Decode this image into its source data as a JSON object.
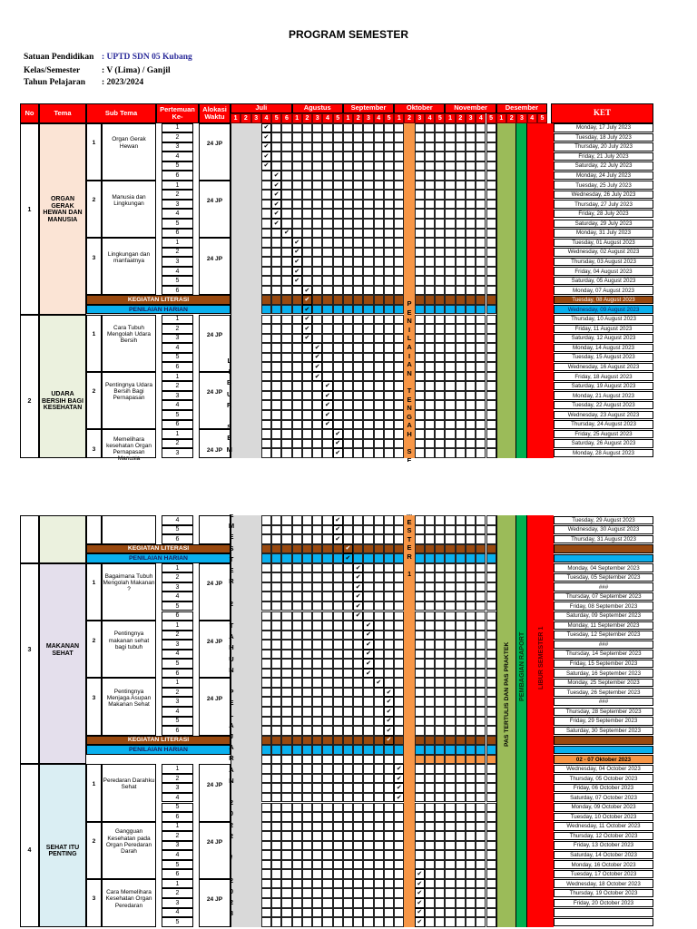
{
  "document": {
    "title": "PROGRAM SEMESTER",
    "info": [
      {
        "label": "Satuan Pendidikan",
        "value": ": UPTD SDN 05 Kubang"
      },
      {
        "label": "Kelas/Semester",
        "value": ": V (Lima) / Ganjil"
      },
      {
        "label": "Tahun Pelajaran",
        "value": ": 2023/2024"
      }
    ]
  },
  "table": {
    "headers": {
      "no": "No",
      "tema": "Tema",
      "sub_tema": "Sub Tema",
      "pertemuan": "Pertemuan Ke-",
      "alokasi": "Alokasi Waktu",
      "ket": "KET"
    },
    "months": [
      {
        "name": "Juli",
        "weeks": [
          "1",
          "2",
          "3",
          "4",
          "5",
          "6"
        ]
      },
      {
        "name": "Agustus",
        "weeks": [
          "1",
          "2",
          "3",
          "4",
          "5"
        ]
      },
      {
        "name": "September",
        "weeks": [
          "1",
          "2",
          "3",
          "4",
          "5"
        ]
      },
      {
        "name": "Oktober",
        "weeks": [
          "1",
          "2",
          "3",
          "4",
          "5"
        ]
      },
      {
        "name": "November",
        "weeks": [
          "1",
          "2",
          "3",
          "4",
          "5"
        ]
      },
      {
        "name": "Desember",
        "weeks": [
          "1",
          "2",
          "3",
          "4",
          "5"
        ]
      }
    ],
    "bands": {
      "literasi": "KEGIATAN LITERASI",
      "penilaian": "PENILAIAN HARIAN"
    },
    "vertical_labels": {
      "libur_semester": "LIBUR SEMESTER 2 TAHUN PELAJARAN 2022 / 2023",
      "pts": "PENILAIAN TENGAH SEMESTER 1",
      "pas": "PAS TERTULIS DAN PAS PRAKTEK",
      "raport": "PEMBAGIAN RAPORT",
      "libur_s1": "LIBUR SEMESTER 1"
    },
    "check_glyph": "✔",
    "temas": [
      {
        "no": "1",
        "name": "ORGAN GERAK HEWAN DAN MANUSIA",
        "color": "#fbe4d5",
        "subtemas": [
          {
            "no": "1",
            "name": "Organ Gerak Hewan",
            "alokasi": "24 JP"
          },
          {
            "no": "2",
            "name": "Manusia dan Lingkungan",
            "alokasi": "24 JP"
          },
          {
            "no": "3",
            "name": "Lingkungan dan manfaatnya",
            "alokasi": "24 JP"
          }
        ]
      },
      {
        "no": "2",
        "name": "UDARA BERSIH BAGI KESEHATAN",
        "color": "#ebf1de",
        "subtemas": [
          {
            "no": "1",
            "name": "Cara Tubuh Mengolah Udara Bersih",
            "alokasi": "24 JP"
          },
          {
            "no": "2",
            "name": "Pentingnya Udara Bersih Bagi Pernapasan",
            "alokasi": "24 JP"
          },
          {
            "no": "3",
            "name": "Memelihara kesehatan Organ Pernapasan Manusia",
            "alokasi": "24 JP"
          }
        ]
      },
      {
        "no": "3",
        "name": "MAKANAN SEHAT",
        "color": "#e4dfec",
        "subtemas": [
          {
            "no": "1",
            "name": "Bagaimana Tubuh Mengolah Makanan ?",
            "alokasi": "24 JP"
          },
          {
            "no": "2",
            "name": "Pentingnya makanan sehat bagi tubuh",
            "alokasi": "24 JP"
          },
          {
            "no": "3",
            "name": "Pentingnya Menjaga Asupan Makanan Sehat",
            "alokasi": "24 JP"
          }
        ]
      },
      {
        "no": "4",
        "name": "SEHAT ITU PENTING",
        "color": "#daeef3",
        "subtemas": [
          {
            "no": "1",
            "name": "Peredaran Darahku Sehat",
            "alokasi": "24 JP"
          },
          {
            "no": "2",
            "name": "Gangguan Kesehatan pada Organ Peredaran Darah",
            "alokasi": "24 JP"
          },
          {
            "no": "3",
            "name": "Cara Memelihara Kesehatan Organ Peredaran",
            "alokasi": "24 JP"
          }
        ]
      }
    ],
    "ket_page1": [
      "Monday, 17 July 2023",
      "Tuesday, 18 July 2023",
      "Thursday, 20 July 2023",
      "Friday, 21 July 2023",
      "Saturday, 22 July 2023",
      "Monday, 24 July 2023",
      "Tuesday, 25 July 2023",
      "Wednesday, 26 July 2023",
      "Thursday, 27 July 2023",
      "Friday, 28 July 2023",
      "Saturday, 29 July 2023",
      "Monday, 31 July 2023",
      "Tuesday, 01 August 2023",
      "Wednesday, 02 August 2023",
      "Thursday, 03 August 2023",
      "Friday, 04 August 2023",
      "Saturday, 05 August 2023",
      "Monday, 07 August 2023",
      "Tuesday, 08 August 2023",
      "Wednesday, 09 August 2023",
      "Thursday, 10 August 2023",
      "Friday, 11 August 2023",
      "Saturday, 12 August 2023",
      "Monday, 14 August 2023",
      "Tuesday, 15 August 2023",
      "Wednesday, 16 August 2023",
      "Friday, 18 August 2023",
      "Saturday, 19 August 2023",
      "Monday, 21 August 2023",
      "Tuesday, 22 August 2023",
      "Wednesday, 23 August 2023",
      "Thursday, 24 August 2023",
      "Friday, 25 August 2023",
      "Saturday, 26 August 2023",
      "Monday, 28 August 2023"
    ],
    "ket_page2": [
      "Tuesday, 29 August 2023",
      "Wednesday, 30 August 2023",
      "Thursday, 31 August 2023",
      "",
      "",
      "Monday, 04 September 2023",
      "Tuesday, 05 September 2023",
      "###",
      "Thursday, 07 September 2023",
      "Friday, 08 September 2023",
      "Saturday, 09 September 2023",
      "Monday, 11 September 2023",
      "Tuesday, 12 September 2023",
      "###",
      "Thursday, 14 September 2023",
      "Friday, 15 September 2023",
      "Saturday, 16 September 2023",
      "Monday, 25 September 2023",
      "Tuesday, 26 September 2023",
      "###",
      "Thursday, 28 September 2023",
      "Friday, 29 September 2023",
      "Saturday, 30 September 2023",
      "",
      "",
      "02 - 07 Oktober 2023",
      "Wednesday, 04 October 2023",
      "Thursday, 05 October 2023",
      "Friday, 06 October 2023",
      "Saturday, 07 October 2023",
      "Monday, 09 October 2023",
      "Tuesday, 10 October 2023",
      "Wednesday, 11 October 2023",
      "Thursday, 12 October 2023",
      "Friday, 13 October 2023",
      "Saturday, 14 October 2023",
      "Monday, 16 October 2023",
      "Tuesday, 17 October 2023",
      "Wednesday, 18 October 2023",
      "Thursday, 19 October 2023",
      "Friday, 20 October 2023"
    ]
  },
  "colors": {
    "header_red": "#ff0000",
    "check_yellow": "#ffff00",
    "literasi_brown": "#99490f",
    "penilaian_blue": "#0ab0ee",
    "pts_orange": "#f79646",
    "pas_olive": "#9bbb59",
    "raport_green": "#00b050",
    "libur_red": "#ff0000",
    "libur_gray": "#d9d9d9"
  }
}
